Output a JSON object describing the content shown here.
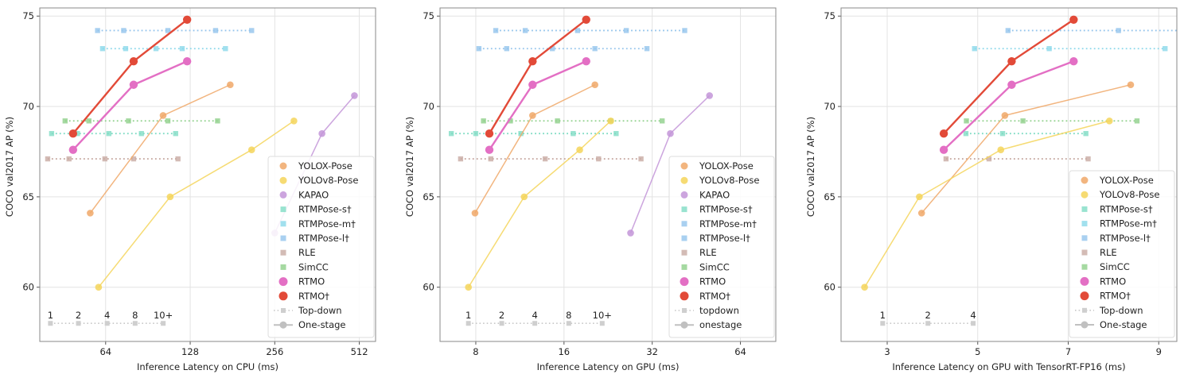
{
  "chart_data": [
    {
      "type": "line",
      "xlabel": "Inference Latency on CPU (ms)",
      "ylabel": "COCO val2017 AP (%)",
      "xscale": "log2",
      "xlim": [
        37.3,
        585
      ],
      "ylim": [
        57.0,
        75.45
      ],
      "xticks": [
        64,
        128,
        256,
        512
      ],
      "xtick_labels": [
        "64",
        "128",
        "256",
        "512"
      ],
      "yticks": [
        60,
        65,
        70,
        75
      ],
      "ytick_labels": [
        "60",
        "65",
        "70",
        "75"
      ],
      "grid": true,
      "legend_placement": "lower-right",
      "legend": [
        "YOLOX-Pose",
        "YOLOv8-Pose",
        "KAPAO",
        "RTMPose-s†",
        "RTMPose-m†",
        "RTMPose-l†",
        "RLE",
        "SimCC",
        "RTMO",
        "RTMO†",
        "Top-down",
        "One-stage"
      ],
      "topdown_indicator": {
        "labels": [
          "1",
          "2",
          "4",
          "8",
          "10+"
        ],
        "x": [
          40.7,
          51.2,
          64.8,
          81.5,
          102.6
        ],
        "y": 58.0
      },
      "series": [
        {
          "name": "YOLOX-Pose",
          "kind": "one-stage",
          "color": "#f0a868",
          "x": [
            56.4,
            102.5,
            177.7
          ],
          "y": [
            64.1,
            69.5,
            71.2
          ]
        },
        {
          "name": "YOLOv8-Pose",
          "kind": "one-stage",
          "color": "#f5d55a",
          "x": [
            60.4,
            108.6,
            211.8,
            299.6
          ],
          "y": [
            60.0,
            65.0,
            67.6,
            69.2
          ]
        },
        {
          "name": "KAPAO",
          "kind": "one-stage",
          "color": "#c395d8",
          "x": [
            256,
            377,
            492
          ],
          "y": [
            63.0,
            68.5,
            70.6
          ]
        },
        {
          "name": "RTMPose-s†",
          "kind": "top-down",
          "color": "#7fdcc4",
          "x": [
            41.1,
            50.8,
            65.7,
            85.8,
            113.6
          ],
          "y": [
            68.5,
            68.5,
            68.5,
            68.5,
            68.5
          ]
        },
        {
          "name": "RTMPose-m†",
          "kind": "top-down",
          "color": "#8ad8ea",
          "x": [
            62.4,
            75.4,
            96.7,
            119.9,
            170.9
          ],
          "y": [
            73.2,
            73.2,
            73.2,
            73.2,
            73.2
          ]
        },
        {
          "name": "RTMPose-l†",
          "kind": "top-down",
          "color": "#94c4ec",
          "x": [
            59.9,
            74.2,
            106.6,
            157.6,
            211.8
          ],
          "y": [
            74.2,
            74.2,
            74.2,
            74.2,
            74.2
          ]
        },
        {
          "name": "RLE",
          "kind": "top-down",
          "color": "#c8aaa2",
          "x": [
            39.8,
            47.4,
            63.6,
            80.5,
            115.8
          ],
          "y": [
            67.1,
            67.1,
            67.1,
            67.1,
            67.1
          ]
        },
        {
          "name": "SimCC",
          "kind": "top-down",
          "color": "#8fd08a",
          "x": [
            45.9,
            55.8,
            77.2,
            106.6,
            160.2
          ],
          "y": [
            69.2,
            69.2,
            69.2,
            69.2,
            69.2
          ]
        },
        {
          "name": "RTMO",
          "kind": "one-stage",
          "color": "#e36fc4",
          "x": [
            49.0,
            80.5,
            124.8
          ],
          "y": [
            67.6,
            71.2,
            72.5
          ]
        },
        {
          "name": "RTMO†",
          "kind": "one-stage",
          "color": "#e24a38",
          "x": [
            49.0,
            80.5,
            124.8
          ],
          "y": [
            68.5,
            72.5,
            74.8
          ]
        }
      ]
    },
    {
      "type": "line",
      "xlabel": "Inference Latency on GPU (ms)",
      "ylabel": "COCO val2017 AP (%)",
      "xscale": "log2",
      "xlim": [
        6.04,
        84.5
      ],
      "ylim": [
        57.0,
        75.45
      ],
      "xticks": [
        8,
        16,
        32,
        64
      ],
      "xtick_labels": [
        "8",
        "16",
        "32",
        "64"
      ],
      "yticks": [
        60,
        65,
        70,
        75
      ],
      "ytick_labels": [
        "60",
        "65",
        "70",
        "75"
      ],
      "grid": true,
      "legend_placement": "lower-right",
      "legend": [
        "YOLOX-Pose",
        "YOLOv8-Pose",
        "KAPAO",
        "RTMPose-s†",
        "RTMPose-m†",
        "RTMPose-l†",
        "RLE",
        "SimCC",
        "RTMO",
        "RTMO†",
        "topdown",
        "onestage"
      ],
      "topdown_indicator": {
        "labels": [
          "1",
          "2",
          "4",
          "8",
          "10+"
        ],
        "x": [
          7.55,
          9.81,
          12.72,
          16.61,
          21.6
        ],
        "y": 58.0
      },
      "series": [
        {
          "name": "YOLOX-Pose",
          "kind": "one-stage",
          "color": "#f0a868",
          "x": [
            7.95,
            12.5,
            20.4
          ],
          "y": [
            64.1,
            69.5,
            71.2
          ]
        },
        {
          "name": "YOLOv8-Pose",
          "kind": "one-stage",
          "color": "#f5d55a",
          "x": [
            7.55,
            11.7,
            18.1,
            23.1
          ],
          "y": [
            60.0,
            65.0,
            67.6,
            69.2
          ]
        },
        {
          "name": "KAPAO",
          "kind": "one-stage",
          "color": "#c395d8",
          "x": [
            27.0,
            36.9,
            50.2
          ],
          "y": [
            63.0,
            68.5,
            70.6
          ]
        },
        {
          "name": "RTMPose-s†",
          "kind": "top-down",
          "color": "#7fdcc4",
          "x": [
            6.6,
            8.0,
            11.4,
            17.2,
            24.1
          ],
          "y": [
            68.5,
            68.5,
            68.5,
            68.5,
            68.5
          ]
        },
        {
          "name": "RTMPose-m†",
          "kind": "top-down",
          "color": "#94c4ec",
          "x": [
            8.2,
            10.2,
            14.6,
            20.4,
            30.7
          ],
          "y": [
            73.2,
            73.2,
            73.2,
            73.2,
            73.2
          ]
        },
        {
          "name": "RTMPose-l†",
          "kind": "top-down",
          "color": "#94c4ec",
          "x": [
            9.36,
            11.8,
            17.8,
            26.1,
            41.3
          ],
          "y": [
            74.2,
            74.2,
            74.2,
            74.2,
            74.2
          ]
        },
        {
          "name": "RLE",
          "kind": "top-down",
          "color": "#c8aaa2",
          "x": [
            7.1,
            9.0,
            13.8,
            21.0,
            29.3
          ],
          "y": [
            67.1,
            67.1,
            67.1,
            67.1,
            67.1
          ]
        },
        {
          "name": "SimCC",
          "kind": "top-down",
          "color": "#8fd08a",
          "x": [
            8.5,
            10.5,
            15.2,
            23.1,
            34.6
          ],
          "y": [
            69.2,
            69.2,
            69.2,
            69.2,
            69.2
          ]
        },
        {
          "name": "RTMO",
          "kind": "one-stage",
          "color": "#e36fc4",
          "x": [
            8.9,
            12.5,
            19.05
          ],
          "y": [
            67.6,
            71.2,
            72.5
          ]
        },
        {
          "name": "RTMO†",
          "kind": "one-stage",
          "color": "#e24a38",
          "x": [
            8.9,
            12.5,
            19.05
          ],
          "y": [
            68.5,
            72.5,
            74.8
          ]
        }
      ]
    },
    {
      "type": "line",
      "xlabel": "Inference Latency on GPU with TensorRT-FP16 (ms)",
      "ylabel": "COCO val2017 AP (%)",
      "xscale": "linear",
      "xlim": [
        1.98,
        9.4
      ],
      "ylim": [
        57.0,
        75.45
      ],
      "xticks": [
        3,
        5,
        7,
        9
      ],
      "xtick_labels": [
        "3",
        "5",
        "7",
        "9"
      ],
      "yticks": [
        60,
        65,
        70,
        75
      ],
      "ytick_labels": [
        "60",
        "65",
        "70",
        "75"
      ],
      "grid": true,
      "legend_placement": "lower-right",
      "legend": [
        "YOLOX-Pose",
        "YOLOv8-Pose",
        "RTMPose-s†",
        "RTMPose-m†",
        "RTMPose-l†",
        "RLE",
        "SimCC",
        "RTMO",
        "RTMO†",
        "Top-down",
        "One-stage"
      ],
      "topdown_indicator": {
        "labels": [
          "1",
          "2",
          "4"
        ],
        "x": [
          2.9,
          3.9,
          4.9
        ],
        "y": 58.0
      },
      "series": [
        {
          "name": "YOLOX-Pose",
          "kind": "one-stage",
          "color": "#f0a868",
          "x": [
            3.76,
            5.6,
            8.38
          ],
          "y": [
            64.1,
            69.5,
            71.2
          ]
        },
        {
          "name": "YOLOv8-Pose",
          "kind": "one-stage",
          "color": "#f5d55a",
          "x": [
            2.5,
            3.71,
            5.51,
            7.91
          ],
          "y": [
            60.0,
            65.0,
            67.6,
            69.2
          ]
        },
        {
          "name": "RTMPose-s†",
          "kind": "top-down",
          "color": "#7fdcc4",
          "x": [
            4.74,
            5.55,
            7.39
          ],
          "y": [
            68.5,
            68.5,
            68.5
          ]
        },
        {
          "name": "RTMPose-m†",
          "kind": "top-down",
          "color": "#8ad8ea",
          "x": [
            4.93,
            6.58,
            9.14
          ],
          "y": [
            73.2,
            73.2,
            73.2
          ]
        },
        {
          "name": "RTMPose-l†",
          "kind": "top-down",
          "color": "#94c4ec",
          "x": [
            5.67,
            8.11,
            9.6
          ],
          "y": [
            74.2,
            74.2,
            74.2
          ]
        },
        {
          "name": "RLE",
          "kind": "top-down",
          "color": "#c8aaa2",
          "x": [
            4.3,
            5.25,
            7.44
          ],
          "y": [
            67.1,
            67.1,
            67.1
          ]
        },
        {
          "name": "SimCC",
          "kind": "top-down",
          "color": "#8fd08a",
          "x": [
            4.75,
            6.0,
            8.52
          ],
          "y": [
            69.2,
            69.2,
            69.2
          ]
        },
        {
          "name": "RTMO",
          "kind": "one-stage",
          "color": "#e36fc4",
          "x": [
            4.25,
            5.75,
            7.12
          ],
          "y": [
            67.6,
            71.2,
            72.5
          ]
        },
        {
          "name": "RTMO†",
          "kind": "one-stage",
          "color": "#e24a38",
          "x": [
            4.25,
            5.75,
            7.12
          ],
          "y": [
            68.5,
            72.5,
            74.8
          ]
        }
      ]
    }
  ]
}
